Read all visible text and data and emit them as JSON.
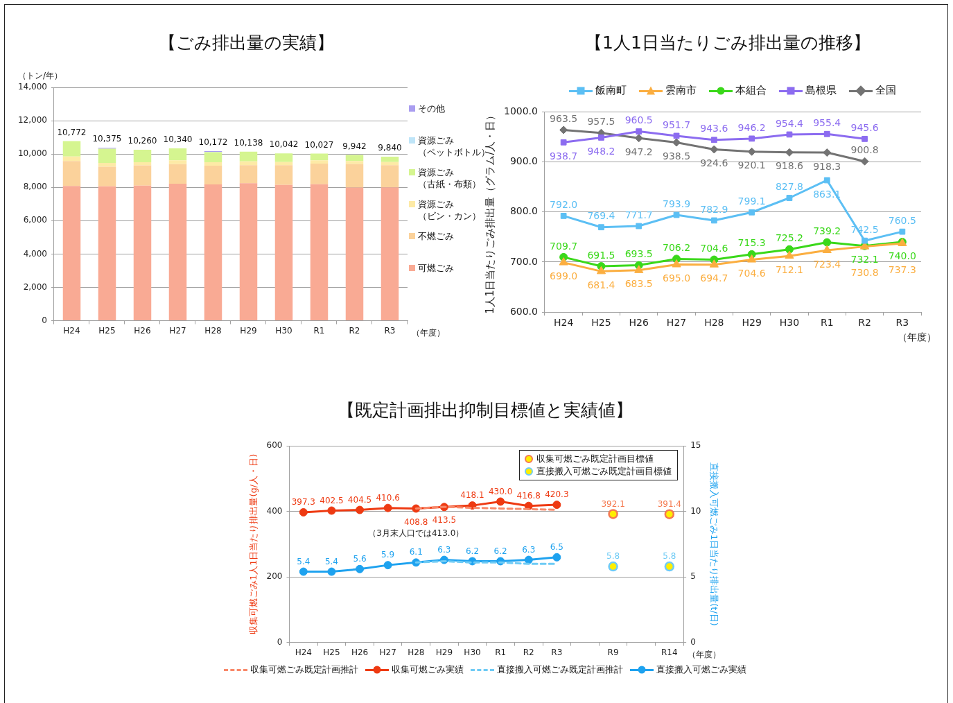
{
  "chart_data": [
    {
      "type": "bar",
      "title": "【ごみ排出量の実績】",
      "ylabel": "（トン/年）",
      "xlabel": "（年度）",
      "stacked": true,
      "grid": "y",
      "legend": "right",
      "categories": [
        "H24",
        "H25",
        "H26",
        "H27",
        "H28",
        "H29",
        "H30",
        "R1",
        "R2",
        "R3"
      ],
      "ylim": [
        0,
        14000
      ],
      "yticks": [
        0,
        {
          "value": 2000,
          "label": "2,000"
        },
        {
          "value": 4000,
          "label": "4,000"
        },
        {
          "value": 6000,
          "label": "6,000"
        },
        {
          "value": 8000,
          "label": "8,000"
        },
        {
          "value": 10000,
          "label": "10,000"
        },
        {
          "value": 12000,
          "label": "12,000"
        },
        {
          "value": 14000,
          "label": "14,000"
        }
      ],
      "series": [
        {
          "name": "可燃ごみ",
          "color": "#f9aa94",
          "values": [
            8082,
            8065,
            8100,
            8220,
            8182,
            8248,
            8142,
            8187,
            7992,
            8000
          ]
        },
        {
          "name": "不燃ごみ",
          "color": "#fbd29b",
          "values": [
            1500,
            1170,
            1220,
            1170,
            1120,
            1080,
            1190,
            1240,
            1410,
            1330
          ]
        },
        {
          "name": "資源ごみ（ビン・カン）",
          "color": "#fdeaa6",
          "values": [
            270,
            230,
            190,
            230,
            210,
            230,
            190,
            200,
            180,
            190
          ]
        },
        {
          "name": "資源ごみ（古紙・布類）",
          "color": "#d5f590",
          "values": [
            920,
            850,
            750,
            720,
            600,
            580,
            520,
            400,
            360,
            320
          ]
        },
        {
          "name": "資源ごみ（ペットボトル）",
          "color": "#bfe5f8",
          "values": [
            0,
            null,
            0,
            0,
            10,
            0,
            0,
            0,
            0,
            0
          ]
        },
        {
          "name": "その他",
          "color": "#a99df0",
          "values": [
            null,
            60,
            null,
            null,
            50,
            0,
            0,
            0,
            0,
            0
          ]
        }
      ],
      "totals": [
        "10,772",
        "10,375",
        "10,260",
        "10,340",
        "10,172",
        "10,138",
        "10,042",
        "10,027",
        "9,942",
        "9,840"
      ]
    },
    {
      "type": "line",
      "title": "【1人1日当たりごみ排出量の推移】",
      "ylabel": "1人1日当たりごみ排出量（グラム/人・日）",
      "xlabel": "（年度）",
      "grid": "y",
      "legend": "top",
      "line_style": "solid",
      "categories": [
        "H24",
        "H25",
        "H26",
        "H27",
        "H28",
        "H29",
        "H30",
        "R1",
        "R2",
        "R3"
      ],
      "ylim": [
        600,
        1000
      ],
      "yticks": [
        {
          "value": 600,
          "label": "600.0"
        },
        {
          "value": 700,
          "label": "700.0"
        },
        {
          "value": 800,
          "label": "800.0"
        },
        {
          "value": 900,
          "label": "900.0"
        },
        {
          "value": 1000,
          "label": "1000.0"
        }
      ],
      "series": [
        {
          "name": "飯南町",
          "color": "#5cbff4",
          "marker": "square",
          "values": [
            792.0,
            769.4,
            771.7,
            793.9,
            782.9,
            799.1,
            827.8,
            863.1,
            742.5,
            760.5
          ],
          "value_labels": [
            "792.0",
            "769.4",
            "771.7",
            "793.9",
            "782.9",
            "799.1",
            "827.8",
            "863.1",
            "742.5",
            "760.5"
          ]
        },
        {
          "name": "雲南市",
          "color": "#fbae40",
          "marker": "triangle",
          "values": [
            699.0,
            681.4,
            683.5,
            695.0,
            694.7,
            704.6,
            712.1,
            723.4,
            730.8,
            737.3
          ],
          "value_labels": [
            "699.0",
            "681.4",
            "683.5",
            "695.0",
            "694.7",
            "704.6",
            "712.1",
            "723.4",
            "730.8",
            "737.3"
          ]
        },
        {
          "name": "本組合",
          "color": "#3ad81a",
          "marker": "circle",
          "values": [
            709.7,
            691.5,
            693.5,
            706.2,
            704.6,
            715.3,
            725.2,
            739.2,
            732.1,
            740.0
          ],
          "value_labels": [
            "709.7",
            "691.5",
            "693.5",
            "706.2",
            "704.6",
            "715.3",
            "725.2",
            "739.2",
            "732.1",
            "740.0"
          ]
        },
        {
          "name": "島根県",
          "color": "#8c6cf0",
          "marker": "square",
          "values": [
            938.7,
            948.2,
            960.5,
            951.7,
            943.6,
            946.2,
            954.4,
            955.4,
            945.6,
            null
          ],
          "value_labels": [
            "938.7",
            "948.2",
            "960.5",
            "951.7",
            "943.6",
            "946.2",
            "954.4",
            "955.4",
            "945.6",
            null
          ]
        },
        {
          "name": "全国",
          "color": "#737373",
          "marker": "diamond",
          "values": [
            963.5,
            957.5,
            947.2,
            938.5,
            924.6,
            920.1,
            918.6,
            918.3,
            900.8,
            null
          ],
          "value_labels": [
            "963.5",
            "957.5",
            "947.2",
            "938.5",
            "924.6",
            "920.1",
            "918.6",
            "918.3",
            "900.8",
            null
          ]
        }
      ]
    },
    {
      "type": "line",
      "title": "【既定計画排出抑制目標値と実績値】",
      "ylabel": "収集可燃ごみ1人1日当たり排出量(g/人・日)",
      "y2label": "直接搬入可燃ごみ1日当たり排出量(t/日)",
      "xlabel": "（年度）",
      "grid": "y",
      "legend": "bottom",
      "marker": "circle",
      "line_style": "solid",
      "categories": [
        "H24",
        "H25",
        "H26",
        "H27",
        "H28",
        "H29",
        "H30",
        "R1",
        "R2",
        "R3",
        null,
        "R9",
        null,
        "R14"
      ],
      "ylim": [
        0,
        600
      ],
      "yticks": [
        0,
        200,
        400,
        600
      ],
      "y2lim": [
        0,
        15
      ],
      "y2ticks": [
        0,
        5,
        10,
        15
      ],
      "series": [
        {
          "name": "収集可燃ごみ既定計画推計",
          "color": "#f8896a",
          "marker": "none",
          "line_style": "dashed",
          "values": [
            null,
            null,
            null,
            null,
            409,
            414,
            411,
            409,
            407,
            405,
            null,
            null,
            null,
            null
          ]
        },
        {
          "name": "収集可燃ごみ実績",
          "color": "#ee3a12",
          "values": [
            397.3,
            402.5,
            404.5,
            410.6,
            408.8,
            413.5,
            418.1,
            430.0,
            416.8,
            420.3,
            null,
            null,
            null,
            null
          ],
          "value_labels": [
            "397.3",
            "402.5",
            "404.5",
            "410.6",
            "408.8",
            "413.5",
            "418.1",
            "430.0",
            "416.8",
            "420.3",
            null,
            null,
            null,
            null
          ]
        },
        {
          "name": "直接搬入可燃ごみ既定計画推計",
          "color": "#6fcbf5",
          "marker": "none",
          "line_style": "dashed",
          "axis": "y2",
          "values": [
            null,
            null,
            null,
            null,
            6.1,
            6.2,
            6.1,
            6.1,
            6.0,
            6.0,
            null,
            null,
            null,
            null
          ]
        },
        {
          "name": "直接搬入可燃ごみ実績",
          "color": "#1ea2ef",
          "axis": "y2",
          "values": [
            5.4,
            5.4,
            5.6,
            5.9,
            6.1,
            6.3,
            6.2,
            6.2,
            6.3,
            6.5,
            null,
            null,
            null,
            null
          ],
          "value_labels": [
            "5.4",
            "5.4",
            "5.6",
            "5.9",
            "6.1",
            "6.3",
            "6.2",
            "6.2",
            "6.3",
            "6.5",
            null,
            null,
            null,
            null
          ]
        },
        {
          "name": "収集可燃ごみ既定計画目標値",
          "type": "scatter",
          "color": "#f57a50",
          "values": [
            null,
            null,
            null,
            null,
            null,
            null,
            null,
            null,
            null,
            null,
            null,
            392.1,
            null,
            391.4
          ],
          "value_labels": [
            null,
            null,
            null,
            null,
            null,
            null,
            null,
            null,
            null,
            null,
            null,
            "392.1",
            null,
            "391.4"
          ]
        },
        {
          "name": "直接搬入可燃ごみ既定計画目標値",
          "type": "scatter",
          "axis": "y2",
          "color": "#6fcbf5",
          "values": [
            null,
            null,
            null,
            null,
            null,
            null,
            null,
            null,
            null,
            null,
            null,
            5.8,
            null,
            5.8
          ],
          "value_labels": [
            null,
            null,
            null,
            null,
            null,
            null,
            null,
            null,
            null,
            null,
            null,
            "5.8",
            null,
            "5.8"
          ]
        }
      ],
      "annotations": [
        {
          "text": "（3月末人口では413.0）",
          "x": "H28",
          "y": 408.8
        }
      ]
    }
  ]
}
